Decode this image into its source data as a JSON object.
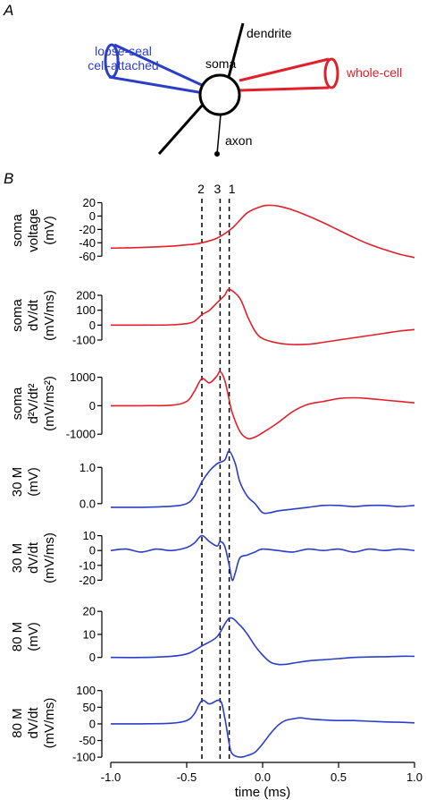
{
  "figure": {
    "panel_a_label": "A",
    "panel_b_label": "B",
    "schematic": {
      "left_pipette_label_line1": "loose-seal",
      "left_pipette_label_line2": "cell-attached",
      "right_pipette_label": "whole-cell",
      "soma_label": "soma",
      "dendrite_label": "dendrite",
      "axon_label": "axon",
      "colors": {
        "cell_attached": "#2a3ec8",
        "whole_cell": "#e0202a",
        "cell": "#000000"
      }
    },
    "markers": {
      "labels": [
        "2",
        "3",
        "1"
      ],
      "times_ms": [
        -0.4,
        -0.28,
        -0.22
      ]
    },
    "x_axis": {
      "label": "time (ms)",
      "ticks": [
        "-1.0",
        "-0.5",
        "0.0",
        "0.5",
        "1.0"
      ]
    }
  },
  "chart_data": {
    "type": "line",
    "x_range": [
      -1.0,
      1.0
    ],
    "panels": [
      {
        "ylabel_1": "soma",
        "ylabel_2": "voltage",
        "ylabel_3": "(mV)",
        "color": "#e0202a",
        "ylim": [
          -65,
          22
        ],
        "ticks": [
          {
            "v": 20,
            "t": "20"
          },
          {
            "v": 0,
            "t": "0"
          },
          {
            "v": -20,
            "t": "-20"
          },
          {
            "v": -40,
            "t": "-40"
          },
          {
            "v": -60,
            "t": "-60"
          }
        ],
        "x": [
          -1.0,
          -0.8,
          -0.6,
          -0.5,
          -0.45,
          -0.4,
          -0.3,
          -0.2,
          -0.1,
          0.0,
          0.05,
          0.1,
          0.2,
          0.3,
          0.4,
          0.5,
          0.6,
          0.7,
          0.8,
          0.9,
          1.0
        ],
        "y": [
          -48,
          -47,
          -45,
          -43,
          -42,
          -40,
          -33,
          -18,
          5,
          15,
          16,
          15,
          9,
          0,
          -10,
          -21,
          -32,
          -42,
          -50,
          -57,
          -62
        ]
      },
      {
        "ylabel_1": "soma",
        "ylabel_2": "dV/dt",
        "ylabel_3": "(mV/ms)",
        "color": "#e0202a",
        "ylim": [
          -130,
          260
        ],
        "ticks": [
          {
            "v": 200,
            "t": "200"
          },
          {
            "v": 100,
            "t": "100"
          },
          {
            "v": 0,
            "t": "0"
          },
          {
            "v": -100,
            "t": "-100"
          }
        ],
        "x": [
          -1.0,
          -0.8,
          -0.6,
          -0.5,
          -0.45,
          -0.4,
          -0.35,
          -0.3,
          -0.25,
          -0.22,
          -0.15,
          -0.1,
          -0.05,
          0.0,
          0.1,
          0.2,
          0.3,
          0.4,
          0.5,
          0.6,
          0.7,
          0.8,
          0.9,
          1.0
        ],
        "y": [
          0,
          0,
          2,
          10,
          25,
          70,
          100,
          150,
          200,
          240,
          180,
          60,
          -40,
          -90,
          -120,
          -130,
          -128,
          -115,
          -100,
          -85,
          -70,
          -55,
          -40,
          -30
        ]
      },
      {
        "ylabel_1": "soma",
        "ylabel_2": "d²V/dt²",
        "ylabel_3": "(mV/ms²)",
        "color": "#e0202a",
        "ylim": [
          -1150,
          1300
        ],
        "ticks": [
          {
            "v": 1000,
            "t": "1000"
          },
          {
            "v": 0,
            "t": "0"
          },
          {
            "v": -1000,
            "t": "-1000"
          }
        ],
        "x": [
          -1.0,
          -0.8,
          -0.6,
          -0.5,
          -0.45,
          -0.4,
          -0.35,
          -0.3,
          -0.28,
          -0.25,
          -0.22,
          -0.2,
          -0.15,
          -0.1,
          -0.05,
          0.0,
          0.1,
          0.2,
          0.3,
          0.4,
          0.5,
          0.6,
          0.7,
          0.8,
          0.9,
          1.0
        ],
        "y": [
          0,
          0,
          20,
          150,
          500,
          950,
          800,
          1050,
          1200,
          900,
          200,
          -250,
          -900,
          -1150,
          -1100,
          -950,
          -600,
          -200,
          50,
          150,
          250,
          280,
          250,
          200,
          150,
          100
        ]
      },
      {
        "ylabel_1": "30 M",
        "ylabel_2": "(mV)",
        "ylabel_3": "",
        "color": "#2a3ec8",
        "ylim": [
          -0.35,
          1.55
        ],
        "ticks": [
          {
            "v": 1.0,
            "t": "1.0"
          },
          {
            "v": 0.0,
            "t": "0.0"
          }
        ],
        "x": [
          -1.0,
          -0.8,
          -0.6,
          -0.5,
          -0.45,
          -0.4,
          -0.35,
          -0.3,
          -0.25,
          -0.22,
          -0.18,
          -0.15,
          -0.1,
          -0.05,
          0.0,
          0.05,
          0.1,
          0.2,
          0.3,
          0.4,
          0.5,
          0.6,
          0.7,
          0.8,
          0.9,
          1.0
        ],
        "y": [
          -0.1,
          -0.1,
          -0.07,
          0.0,
          0.2,
          0.6,
          0.9,
          1.1,
          1.2,
          1.45,
          1.1,
          0.6,
          0.2,
          0.0,
          -0.25,
          -0.25,
          -0.2,
          -0.15,
          -0.1,
          -0.05,
          -0.05,
          -0.08,
          -0.05,
          -0.05,
          -0.08,
          -0.05
        ]
      },
      {
        "ylabel_1": "30 M",
        "ylabel_2": "dV/dt",
        "ylabel_3": "(mV/ms)",
        "color": "#2a3ec8",
        "ylim": [
          -24,
          14
        ],
        "ticks": [
          {
            "v": 10,
            "t": "10"
          },
          {
            "v": 0,
            "t": "0"
          },
          {
            "v": -10,
            "t": "-10"
          },
          {
            "v": -20,
            "t": "-20"
          }
        ],
        "x": [
          -1.0,
          -0.9,
          -0.8,
          -0.7,
          -0.6,
          -0.5,
          -0.45,
          -0.4,
          -0.35,
          -0.3,
          -0.28,
          -0.25,
          -0.22,
          -0.2,
          -0.18,
          -0.15,
          -0.1,
          -0.05,
          0.0,
          0.1,
          0.2,
          0.3,
          0.4,
          0.5,
          0.6,
          0.7,
          0.8,
          0.9,
          1.0
        ],
        "y": [
          0,
          1,
          -1,
          1,
          0,
          2,
          5,
          10,
          6,
          3,
          6,
          3,
          -10,
          -20,
          -15,
          -5,
          -3,
          -1,
          1,
          0,
          -1,
          1,
          0,
          1,
          -1,
          1,
          0,
          1,
          0
        ]
      },
      {
        "ylabel_1": "80 M",
        "ylabel_2": "(mV)",
        "ylabel_3": "",
        "color": "#2a3ec8",
        "ylim": [
          -4,
          22
        ],
        "ticks": [
          {
            "v": 20,
            "t": "20"
          },
          {
            "v": 10,
            "t": "10"
          },
          {
            "v": 0,
            "t": "0"
          }
        ],
        "x": [
          -1.0,
          -0.8,
          -0.6,
          -0.5,
          -0.45,
          -0.4,
          -0.3,
          -0.22,
          -0.15,
          -0.1,
          -0.05,
          0.0,
          0.05,
          0.1,
          0.15,
          0.2,
          0.3,
          0.4,
          0.5,
          0.6,
          0.7,
          0.8,
          0.9,
          1.0
        ],
        "y": [
          0,
          0,
          0.5,
          1.5,
          3,
          5,
          9,
          17,
          14,
          10,
          5,
          1,
          -2,
          -3,
          -3,
          -2.5,
          -1.5,
          -1,
          -0.5,
          0,
          0.2,
          0.3,
          0.5,
          0.5
        ]
      },
      {
        "ylabel_1": "80 M",
        "ylabel_2": "dV/dt",
        "ylabel_3": "(mV/ms)",
        "color": "#2a3ec8",
        "ylim": [
          -105,
          110
        ],
        "ticks": [
          {
            "v": 100,
            "t": "100"
          },
          {
            "v": 50,
            "t": "50"
          },
          {
            "v": 0,
            "t": "0"
          },
          {
            "v": -50,
            "t": "-50"
          },
          {
            "v": -100,
            "t": "-100"
          }
        ],
        "x": [
          -1.0,
          -0.8,
          -0.6,
          -0.5,
          -0.45,
          -0.4,
          -0.35,
          -0.28,
          -0.25,
          -0.22,
          -0.2,
          -0.15,
          -0.1,
          -0.05,
          0.0,
          0.05,
          0.1,
          0.15,
          0.2,
          0.25,
          0.3,
          0.4,
          0.5,
          0.6,
          0.7,
          0.8,
          0.9,
          1.0
        ],
        "y": [
          0,
          0,
          2,
          10,
          30,
          70,
          60,
          70,
          20,
          -60,
          -90,
          -100,
          -95,
          -85,
          -60,
          -30,
          -5,
          10,
          15,
          18,
          15,
          12,
          10,
          10,
          8,
          6,
          5,
          3
        ]
      }
    ]
  }
}
